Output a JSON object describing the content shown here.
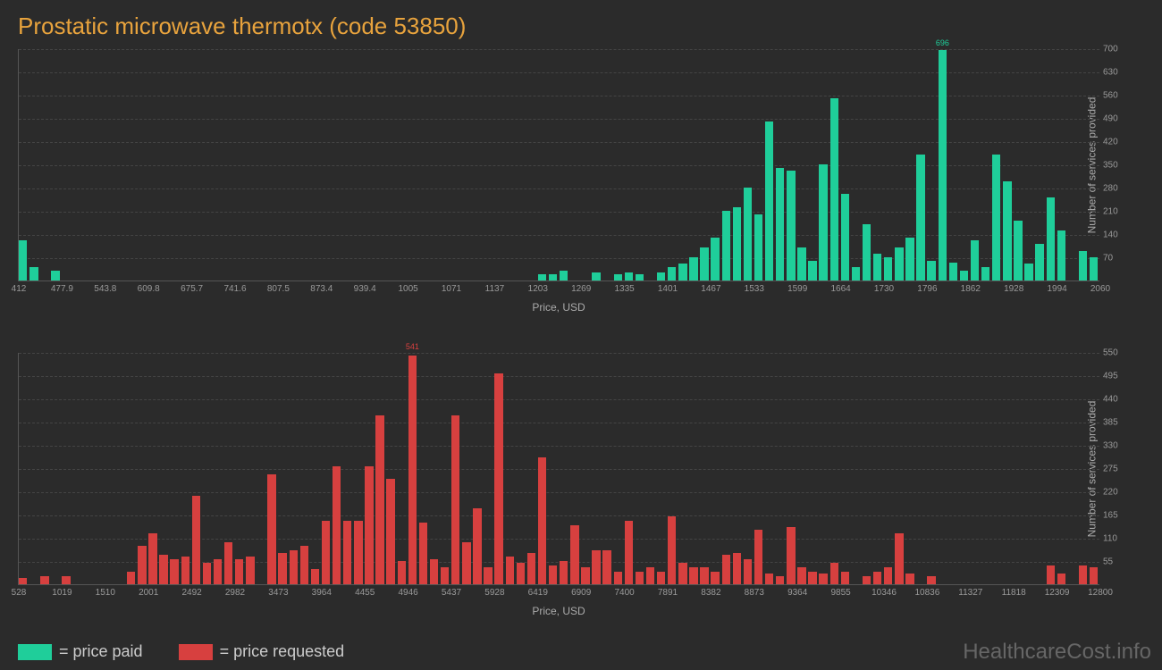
{
  "title": "Prostatic microwave thermotx (code 53850)",
  "watermark": "HealthcareCost.info",
  "legend": {
    "paid": {
      "label": "= price paid",
      "color": "#1fce9a"
    },
    "requested": {
      "label": "= price requested",
      "color": "#d7403f"
    }
  },
  "chart_paid": {
    "type": "histogram",
    "bar_color": "#1fce9a",
    "background_color": "#2b2b2b",
    "grid_color": "#444444",
    "text_color": "#999999",
    "xlabel": "Price, USD",
    "ylabel": "Number of services provided",
    "label_fontsize": 12,
    "tick_fontsize": 10,
    "ylim": [
      0,
      700
    ],
    "yticks": [
      70,
      140,
      210,
      280,
      350,
      420,
      490,
      560,
      630,
      700
    ],
    "xticks": [
      "412",
      "477.9",
      "543.8",
      "609.8",
      "675.7",
      "741.6",
      "807.5",
      "873.4",
      "939.4",
      "1005",
      "1071",
      "1137",
      "1203",
      "1269",
      "1335",
      "1401",
      "1467",
      "1533",
      "1599",
      "1664",
      "1730",
      "1796",
      "1862",
      "1928",
      "1994",
      "2060"
    ],
    "n_bins": 100,
    "peak": {
      "value": 696,
      "bin_index": 85
    },
    "values": [
      120,
      40,
      0,
      30,
      0,
      0,
      0,
      0,
      0,
      0,
      0,
      0,
      0,
      0,
      0,
      0,
      0,
      0,
      0,
      0,
      0,
      0,
      0,
      0,
      0,
      0,
      0,
      0,
      0,
      0,
      0,
      0,
      0,
      0,
      0,
      0,
      0,
      0,
      0,
      0,
      0,
      0,
      0,
      0,
      0,
      0,
      0,
      0,
      20,
      20,
      30,
      0,
      0,
      25,
      0,
      20,
      25,
      20,
      0,
      25,
      40,
      50,
      70,
      100,
      130,
      210,
      220,
      280,
      200,
      480,
      340,
      330,
      100,
      60,
      350,
      550,
      260,
      40,
      170,
      80,
      70,
      100,
      130,
      380,
      60,
      696,
      55,
      30,
      120,
      40,
      380,
      300,
      180,
      50,
      110,
      250,
      150,
      0,
      90,
      70
    ]
  },
  "chart_requested": {
    "type": "histogram",
    "bar_color": "#d7403f",
    "background_color": "#2b2b2b",
    "grid_color": "#444444",
    "text_color": "#999999",
    "xlabel": "Price, USD",
    "ylabel": "Number of services provided",
    "label_fontsize": 12,
    "tick_fontsize": 10,
    "ylim": [
      0,
      550
    ],
    "yticks": [
      55,
      110,
      165,
      220,
      275,
      330,
      385,
      440,
      495,
      550
    ],
    "xticks": [
      "528",
      "1019",
      "1510",
      "2001",
      "2492",
      "2982",
      "3473",
      "3964",
      "4455",
      "4946",
      "5437",
      "5928",
      "6419",
      "6909",
      "7400",
      "7891",
      "8382",
      "8873",
      "9364",
      "9855",
      "10346",
      "10836",
      "11327",
      "11818",
      "12309",
      "12800"
    ],
    "n_bins": 100,
    "peak": {
      "value": 541,
      "bin_index": 36
    },
    "values": [
      15,
      0,
      20,
      0,
      20,
      0,
      0,
      0,
      0,
      0,
      30,
      90,
      120,
      70,
      60,
      65,
      210,
      50,
      60,
      100,
      60,
      65,
      0,
      260,
      75,
      80,
      90,
      35,
      150,
      280,
      150,
      150,
      280,
      400,
      250,
      55,
      541,
      145,
      60,
      40,
      400,
      100,
      180,
      40,
      500,
      65,
      50,
      75,
      300,
      45,
      55,
      140,
      40,
      80,
      80,
      30,
      150,
      30,
      40,
      30,
      160,
      50,
      40,
      40,
      30,
      70,
      75,
      60,
      130,
      25,
      20,
      135,
      40,
      30,
      25,
      50,
      30,
      0,
      20,
      30,
      40,
      120,
      25,
      0,
      20,
      0,
      0,
      0,
      0,
      0,
      0,
      0,
      0,
      0,
      0,
      45,
      25,
      0,
      45,
      40
    ]
  }
}
